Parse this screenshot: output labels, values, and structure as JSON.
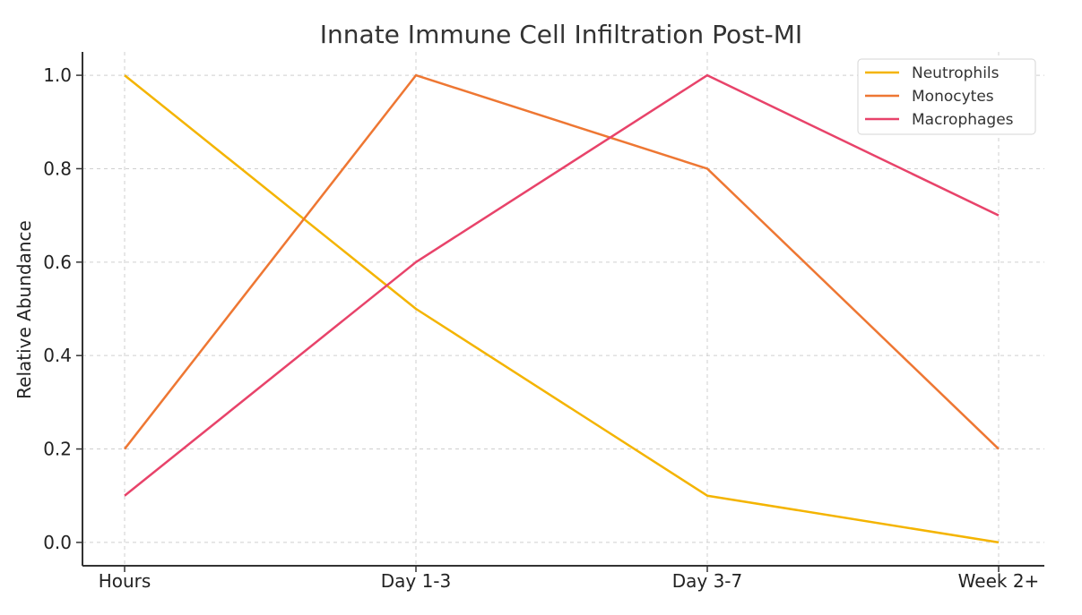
{
  "chart_data": {
    "type": "line",
    "title": "Innate Immune Cell Infiltration Post-MI",
    "xlabel": "",
    "ylabel": "Relative Abundance",
    "categories": [
      "Hours",
      "Day 1-3",
      "Day 3-7",
      "Week 2+"
    ],
    "ylim": [
      -0.05,
      1.05
    ],
    "yticks": [
      0.0,
      0.2,
      0.4,
      0.6,
      0.8,
      1.0
    ],
    "ytick_labels": [
      "0.0",
      "0.2",
      "0.4",
      "0.6",
      "0.8",
      "1.0"
    ],
    "grid": true,
    "legend_position": "top-right",
    "series": [
      {
        "name": "Neutrophils",
        "color": "#F4B400",
        "values": [
          1.0,
          0.5,
          0.1,
          0.0
        ]
      },
      {
        "name": "Monocytes",
        "color": "#EE7733",
        "values": [
          0.2,
          1.0,
          0.8,
          0.2
        ]
      },
      {
        "name": "Macrophages",
        "color": "#E8436A",
        "values": [
          0.1,
          0.6,
          1.0,
          0.7
        ]
      }
    ]
  }
}
